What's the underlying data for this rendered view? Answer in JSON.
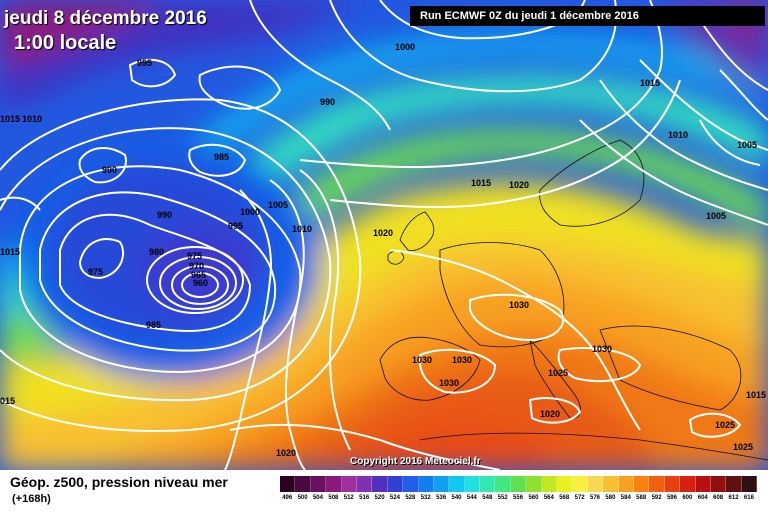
{
  "header": {
    "date": "jeudi 8 décembre 2016",
    "time": "1:00 locale",
    "run": "Run ECMWF 0Z du jeudi 1 décembre 2016"
  },
  "copyright": "Copyright 2016 Meteociel.fr",
  "legend": {
    "title": "Géop. z500, pression niveau mer",
    "subtitle": "(+168h)",
    "scale": [
      {
        "v": "496",
        "c": "#2a0220"
      },
      {
        "v": "500",
        "c": "#4a0a40"
      },
      {
        "v": "504",
        "c": "#6a1060"
      },
      {
        "v": "508",
        "c": "#8a1a80"
      },
      {
        "v": "512",
        "c": "#a030a0"
      },
      {
        "v": "516",
        "c": "#8030b0"
      },
      {
        "v": "520",
        "c": "#5030c0"
      },
      {
        "v": "524",
        "c": "#3040d0"
      },
      {
        "v": "528",
        "c": "#2060e8"
      },
      {
        "v": "532",
        "c": "#1080f0"
      },
      {
        "v": "536",
        "c": "#10a0f0"
      },
      {
        "v": "540",
        "c": "#10c8f0"
      },
      {
        "v": "544",
        "c": "#20e0e0"
      },
      {
        "v": "548",
        "c": "#30e8b0"
      },
      {
        "v": "552",
        "c": "#40e880"
      },
      {
        "v": "556",
        "c": "#60e050"
      },
      {
        "v": "560",
        "c": "#90e030"
      },
      {
        "v": "564",
        "c": "#c0e820"
      },
      {
        "v": "568",
        "c": "#e8f020"
      },
      {
        "v": "572",
        "c": "#f8f040"
      },
      {
        "v": "576",
        "c": "#f8d850"
      },
      {
        "v": "580",
        "c": "#f8c030"
      },
      {
        "v": "584",
        "c": "#f8a020"
      },
      {
        "v": "588",
        "c": "#f88010"
      },
      {
        "v": "592",
        "c": "#f06010"
      },
      {
        "v": "596",
        "c": "#e84010"
      },
      {
        "v": "600",
        "c": "#d82010"
      },
      {
        "v": "604",
        "c": "#b81010"
      },
      {
        "v": "608",
        "c": "#901010"
      },
      {
        "v": "612",
        "c": "#601010"
      },
      {
        "v": "616",
        "c": "#301010"
      }
    ]
  },
  "isobar_labels": [
    {
      "t": "995"
    },
    {
      "t": "1000"
    },
    {
      "t": "990"
    },
    {
      "t": "1015"
    },
    {
      "t": "1015"
    },
    {
      "t": "1010"
    },
    {
      "t": "990"
    },
    {
      "t": "985"
    },
    {
      "t": "990"
    },
    {
      "t": "1000"
    },
    {
      "t": "1005"
    },
    {
      "t": "995"
    },
    {
      "t": "1010"
    },
    {
      "t": "980"
    },
    {
      "t": "975"
    },
    {
      "t": "970"
    },
    {
      "t": "965"
    },
    {
      "t": "960"
    },
    {
      "t": "975"
    },
    {
      "t": "985"
    },
    {
      "t": "1015"
    },
    {
      "t": "1020"
    },
    {
      "t": "1020"
    },
    {
      "t": "1010"
    },
    {
      "t": "1005"
    },
    {
      "t": "1005"
    },
    {
      "t": "1030"
    },
    {
      "t": "1030"
    },
    {
      "t": "1030"
    },
    {
      "t": "1030"
    },
    {
      "t": "1030"
    },
    {
      "t": "1025"
    },
    {
      "t": "1020"
    },
    {
      "t": "1025"
    },
    {
      "t": "1025"
    },
    {
      "t": "1020"
    },
    {
      "t": "1015"
    },
    {
      "t": "015"
    },
    {
      "t": "1015"
    }
  ]
}
